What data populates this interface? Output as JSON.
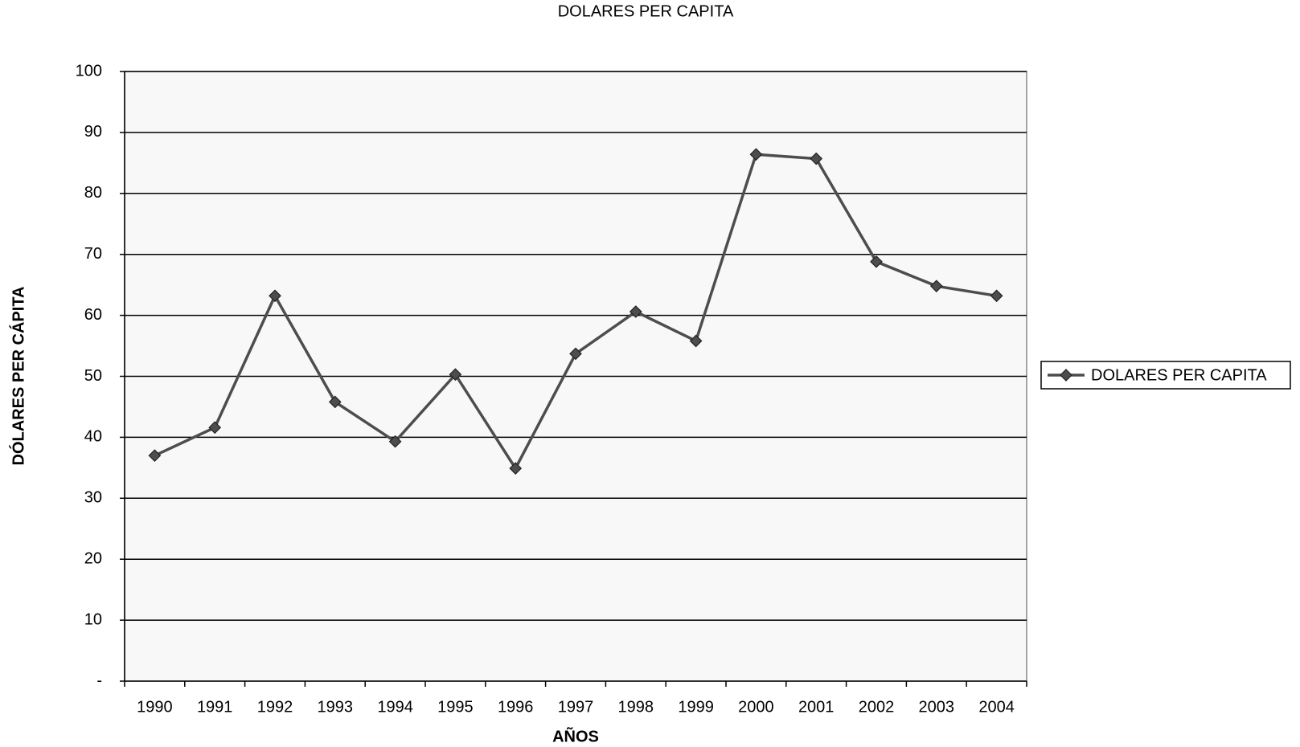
{
  "chart_data": {
    "type": "line",
    "title": "DOLARES PER CAPITA",
    "x_label": "AÑOS",
    "y_label": "DÓLARES PER CÁPITA",
    "categories": [
      "1990",
      "1991",
      "1992",
      "1993",
      "1994",
      "1995",
      "1996",
      "1997",
      "1998",
      "1999",
      "2000",
      "2001",
      "2002",
      "2003",
      "2004"
    ],
    "series": [
      {
        "name": "DOLARES PER CAPITA",
        "color": "#4d4d4d",
        "values": [
          37,
          41.6,
          63.2,
          45.8,
          39.3,
          50.3,
          34.9,
          53.7,
          60.6,
          55.8,
          86.4,
          85.7,
          68.8,
          64.8,
          63.2
        ]
      }
    ],
    "ylim": [
      0,
      100
    ],
    "yticks": [
      {
        "value": 0,
        "label": "-"
      },
      10,
      20,
      30,
      40,
      50,
      60,
      70,
      80,
      90,
      100
    ],
    "grid": true,
    "legend": "right"
  }
}
